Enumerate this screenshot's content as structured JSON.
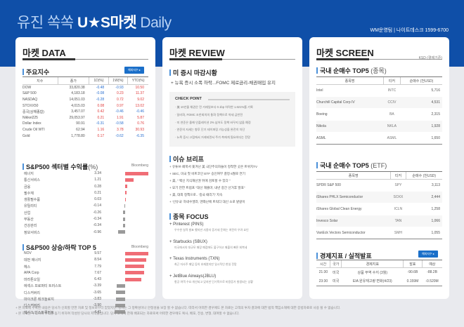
{
  "header": {
    "title_light": "유진 쏙쏙 ",
    "title_bold": "U★S마켓",
    "title_daily": " Daily",
    "contact": "WM운영팀 | 나이트데스크 1599-6700",
    "bg_color": "#0f4fa8"
  },
  "market_data": {
    "title": "마켓 DATA",
    "indices": {
      "title": "주요지수",
      "more_label": "해외지수 ▸",
      "columns": [
        "지수",
        "종가",
        "1D(%)",
        "1W(%)",
        "YTD(%)"
      ],
      "rows": [
        {
          "name": "DOW",
          "close": "33,820.38",
          "d1": "-0.48",
          "w1": "-0.93",
          "ytd": "10.50"
        },
        {
          "name": "S&P 500",
          "close": "4,183.18",
          "d1": "-0.08",
          "w1": "0.23",
          "ytd": "11.37"
        },
        {
          "name": "NASDAQ",
          "close": "14,051.03",
          "d1": "-0.28",
          "w1": "0.72",
          "ytd": "9.02"
        },
        {
          "name": "STOXX50",
          "close": "4,015.03",
          "d1": "0.08",
          "w1": "0.97",
          "ytd": "13.02"
        },
        {
          "name": "중국(상해종합)",
          "close": "3,457.07",
          "d1": "0.42",
          "w1": "-0.46",
          "ytd": "-0.46"
        },
        {
          "name": "Nikkei225",
          "close": "29,053.97",
          "d1": "0.21",
          "w1": "1.91",
          "ytd": "5.87"
        },
        {
          "name": "Dollar Index",
          "close": "90.91",
          "d1": "-0.31",
          "w1": "-0.58",
          "ytd": "0.76"
        },
        {
          "name": "Crude Oil WTI",
          "close": "62.94",
          "d1": "1.16",
          "w1": "3.78",
          "ytd": "30.93"
        },
        {
          "name": "Gold",
          "close": "1,778.80",
          "d1": "0.17",
          "w1": "-0.62",
          "ytd": "-6.35"
        }
      ]
    },
    "sectors": {
      "title": "S&P500 섹터별 수익률",
      "title_unit": "(%)",
      "source": "Bloomberg",
      "rows": [
        {
          "label": "에너지",
          "value": 3.34
        },
        {
          "label": "통신서비스",
          "value": 1.21
        },
        {
          "label": "금융",
          "value": 0.28
        },
        {
          "label": "필수재",
          "value": 0.21
        },
        {
          "label": "생활필수품",
          "value": 0.03
        },
        {
          "label": "유틸리티",
          "value": -0.14
        },
        {
          "label": "산업",
          "value": -0.26
        },
        {
          "label": "부동산",
          "value": -0.34
        },
        {
          "label": "건강관리",
          "value": -0.34
        },
        {
          "label": "정보서비스",
          "value": -0.96
        }
      ]
    },
    "top5": {
      "title": "S&P500 상승/하락 TOP 5",
      "source": "Bloomberg",
      "rows": [
        {
          "label": "NOV",
          "value": 9.57
        },
        {
          "label": "데번 에너지",
          "value": 8.54
        },
        {
          "label": "헤스",
          "value": 7.79
        },
        {
          "label": "APA Corp",
          "value": 7.67
        },
        {
          "label": "마라톤오일",
          "value": 6.43
        },
        {
          "label": "에섹스 프로퍼티 트러스트",
          "value": -3.39
        },
        {
          "label": "디스커버리",
          "value": -3.65
        },
        {
          "label": "마이크론 테크놀로지",
          "value": -3.83
        },
        {
          "label": "디스커버리",
          "value": -3.9
        },
        {
          "label": "텍사스 인스트루먼트",
          "value": -4.41
        }
      ]
    }
  },
  "review": {
    "title": "마켓 REVIEW",
    "close_title": "미 증시 마감시황",
    "headline": "+ 뉴욕 증시 소폭 하락...FOMC 제로금리-채권매입 유지",
    "checkpoint_title": "CHECK POINT",
    "checkpoints": [
      "· 美 10년물 채권은 전 거래일보다 0.1bp 하락한 1.621%를 기록",
      "· 달러화, FOMC 조찬회의의 통화 정책으로 약세 급반전",
      "· 미 연준은 올해 인플레이션 2% 넘어도 정책 바꾸지 않을 예정",
      "· 연준의 자세는 향후 단기 테이퍼링 가능성을 완전히 차단",
      "· 뉴욕 증시 고점에서 거래되면서 주가 측에게 필요하다는 전망"
    ],
    "brief_title": "이슈 브리프",
    "briefs": [
      "+ 유튜브·페북서 쫓겨난 美 극단주의자들이 정착한 곳은 트위치TV",
      "+ SEC, 미국 첫 비트코인 ETF 승인여부 결정 6월로 연기",
      "+ 美, \" 백신 지식재산권 뒤에 검토할 수 있다 \"",
      "+ 묘기 만한 트럼프 \"대선 재출마, 내년 중간 선거후 발표\"",
      "+ 美, 대외 정책으로.. '중국 때리기' 지속",
      "+ '신유국' 하네수엘라, 엔화난에 트럭다 대신 소로 밭갈이"
    ],
    "focus_title": "종목 FOCUS",
    "focus": [
      {
        "name": "+ Pinterest (PINS)",
        "desc": "우수한 실적 발표 했지만 사용자 증가세 둔화는 여전히 우려 요인"
      },
      {
        "name": "+ Starbucks (SBUX)",
        "desc": "미국에서의 대규모 매장 폐점에도 불구하고 매출의 빠른 회복세"
      },
      {
        "name": "+ Texas Instruments (TXN)",
        "desc": "최근 자사주 매입 등의 호재였지만 일시적인 현실 전망"
      },
      {
        "name": "+ JetBlue Airways(JBLU)",
        "desc": "항공 여객 수요 개선되고 있지만 단기적으로 비용증가 발생되는 상황"
      }
    ]
  },
  "screen": {
    "title": "마켓 SCREEN",
    "ksd_note": "KSD (결제기준)",
    "stocks": {
      "title": "국내 순매수 TOP5",
      "title_unit": " (종목)",
      "columns": [
        "종목명",
        "티커",
        "순매수 (천USD)"
      ],
      "rows": [
        {
          "name": "Intel",
          "ticker": "INTC",
          "value": "5,716"
        },
        {
          "name": "Churchill Capital Corp IV",
          "ticker": "CCIV",
          "value": "4,531"
        },
        {
          "name": "Boeing",
          "ticker": "BA",
          "value": "2,315"
        },
        {
          "name": "Nikola",
          "ticker": "NKLA",
          "value": "1,928"
        },
        {
          "name": "ASML",
          "ticker": "ASML",
          "value": "1,650"
        }
      ]
    },
    "etf": {
      "title": "국내 순매수 TOP5",
      "title_unit": " (ETF)",
      "columns": [
        "종목명",
        "티커",
        "순매수 (천USD)"
      ],
      "rows": [
        {
          "name": "SPDR S&P 500",
          "ticker": "SPY",
          "value": "3,113"
        },
        {
          "name": "iShares PHLX Semiconductor",
          "ticker": "SOXX",
          "value": "2,444"
        },
        {
          "name": "iShares Global Clean Energy",
          "ticker": "ICLN",
          "value": "1,258"
        },
        {
          "name": "Invesco Solar",
          "ticker": "TAN",
          "value": "1,066"
        },
        {
          "name": "VanEck Vectors Semiconductor",
          "ticker": "SMH",
          "value": "1,055"
        }
      ]
    },
    "eco": {
      "title": "경제지표 / 실적발표",
      "more_label": "해외지수 ▸",
      "columns": [
        "시간",
        "국가",
        "경제지표",
        "발표",
        "예상"
      ],
      "rows": [
        {
          "time": "21:30",
          "country": "미국",
          "name": "상품 무역 수지 (3월)",
          "actual": "-90.6B",
          "forecast": "-88.2B"
        },
        {
          "time": "23:30",
          "country": "미국",
          "name": "EIA 원유재고량 변화(4/23)",
          "actual": "0.159M",
          "forecast": "-0.520M"
        }
      ]
    }
  },
  "footer": {
    "line1": "+ 본 자료에 수록된 내용은 당사가 신뢰할 만한 자료 및 정보로부터 얻었지만, 당사는 그 정확성이나 안정성을 보장 할 수 없습니다. 따라서 어떠한 경우에도 본 자료는 고객의 투자 결과에 대한 법적 책임소재에 대한 증빙자료로 사용 될 수 없습니다.",
    "line2": "+ 본 자료는 투자자의 투자를 돕기 위하여 작성된 당사의 저작물입니다. 당사 고객에 한해 배포되는 자료로써 어떠한 경우에도 복사, 배포, 전송, 변형, 대여할 수 없습니다."
  }
}
